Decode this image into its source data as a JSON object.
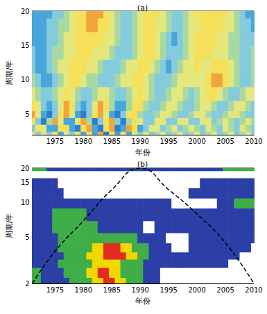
{
  "chart_data": [
    {
      "type": "heatmap",
      "title": "(a)",
      "xlabel": "年份",
      "ylabel": "周期/年",
      "xlim": [
        1971,
        2010
      ],
      "ylim": [
        2,
        20
      ],
      "xticks": [
        1975,
        1980,
        1985,
        1990,
        1995,
        2000,
        2005,
        2010
      ],
      "yticks": [
        5,
        10,
        15,
        20
      ],
      "zlim": [
        -3,
        3
      ],
      "x": [
        1971,
        1972,
        1973,
        1974,
        1975,
        1976,
        1977,
        1978,
        1979,
        1980,
        1981,
        1982,
        1983,
        1984,
        1985,
        1986,
        1987,
        1988,
        1989,
        1990,
        1991,
        1992,
        1993,
        1994,
        1995,
        1996,
        1997,
        1998,
        1999,
        2000,
        2001,
        2002,
        2003,
        2004,
        2005,
        2006,
        2007,
        2008,
        2009,
        2010
      ],
      "y": [
        2,
        3,
        4,
        5,
        6,
        8,
        10,
        12,
        14,
        16,
        18,
        20
      ],
      "cells": [
        [
          1,
          -1,
          1,
          -1,
          2,
          -2,
          1,
          -1,
          2,
          -2,
          2,
          -2,
          3,
          -3,
          2,
          -2,
          2,
          -2,
          1,
          -1,
          1,
          -1,
          0,
          1,
          -1,
          0,
          1,
          -1,
          0,
          1,
          -1,
          0,
          1,
          -1,
          0,
          1,
          -1,
          0,
          1,
          -1
        ],
        [
          -1,
          2,
          1,
          -2,
          -2,
          2,
          2,
          -2,
          -3,
          2,
          3,
          -2,
          -3,
          2,
          3,
          -3,
          -2,
          3,
          2,
          -2,
          -1,
          1,
          1,
          -1,
          0,
          1,
          -1,
          0,
          1,
          0,
          -1,
          1,
          0,
          -1,
          1,
          0,
          -1,
          1,
          0,
          -1
        ],
        [
          2,
          -1,
          -3,
          0,
          3,
          1,
          -2,
          -2,
          1,
          3,
          0,
          -3,
          -1,
          2,
          3,
          -1,
          -3,
          0,
          2,
          1,
          -1,
          -1,
          1,
          1,
          -1,
          -1,
          1,
          1,
          -1,
          -1,
          1,
          1,
          -1,
          0,
          1,
          0,
          -1,
          0,
          1,
          0
        ],
        [
          3,
          1,
          -2,
          -3,
          -1,
          2,
          3,
          1,
          -2,
          -3,
          -1,
          2,
          3,
          1,
          -2,
          -3,
          -1,
          2,
          2,
          0,
          -1,
          -1,
          0,
          1,
          1,
          0,
          -1,
          -1,
          0,
          1,
          1,
          0,
          -1,
          -1,
          0,
          1,
          1,
          0,
          -1,
          -1
        ],
        [
          2,
          1,
          -1,
          -2,
          -1,
          1,
          3,
          2,
          -1,
          -2,
          -1,
          1,
          3,
          2,
          0,
          -2,
          -2,
          0,
          2,
          2,
          0,
          -1,
          -1,
          0,
          1,
          1,
          0,
          -1,
          -1,
          0,
          1,
          1,
          0,
          -1,
          -1,
          0,
          1,
          1,
          0,
          -1
        ],
        [
          1,
          0,
          -1,
          -1,
          0,
          1,
          2,
          1,
          0,
          -1,
          -1,
          0,
          1,
          1,
          0,
          -1,
          -1,
          0,
          1,
          2,
          1,
          0,
          -1,
          -1,
          0,
          1,
          1,
          0,
          -1,
          0,
          1,
          2,
          2,
          1,
          0,
          -1,
          -1,
          0,
          1,
          1
        ],
        [
          0,
          -1,
          -2,
          -2,
          -1,
          0,
          1,
          2,
          2,
          1,
          0,
          0,
          -1,
          -1,
          -1,
          0,
          1,
          1,
          2,
          2,
          1,
          0,
          -1,
          -1,
          -1,
          0,
          1,
          1,
          1,
          1,
          1,
          2,
          3,
          3,
          2,
          1,
          0,
          -1,
          -1,
          0
        ],
        [
          -1,
          -2,
          -2,
          -1,
          0,
          1,
          1,
          2,
          2,
          2,
          1,
          1,
          0,
          -1,
          -1,
          -1,
          0,
          1,
          1,
          2,
          2,
          1,
          0,
          -1,
          -2,
          -1,
          0,
          1,
          1,
          2,
          1,
          1,
          2,
          2,
          2,
          1,
          0,
          -1,
          -1,
          0
        ],
        [
          -1,
          -2,
          -2,
          -1,
          0,
          0,
          1,
          1,
          2,
          2,
          2,
          1,
          1,
          1,
          0,
          -1,
          -1,
          -1,
          0,
          1,
          2,
          2,
          1,
          0,
          -1,
          -1,
          -1,
          0,
          1,
          2,
          2,
          2,
          1,
          1,
          1,
          0,
          0,
          -1,
          -1,
          0
        ],
        [
          -2,
          -2,
          -2,
          -1,
          -1,
          0,
          1,
          1,
          2,
          2,
          2,
          2,
          2,
          1,
          1,
          0,
          -1,
          -1,
          0,
          1,
          2,
          2,
          1,
          0,
          -1,
          -2,
          -1,
          0,
          1,
          2,
          2,
          2,
          2,
          1,
          1,
          0,
          0,
          -1,
          -1,
          -1
        ],
        [
          -2,
          -2,
          -2,
          -1,
          -1,
          0,
          0,
          1,
          2,
          2,
          3,
          3,
          2,
          2,
          1,
          0,
          -1,
          -1,
          0,
          1,
          2,
          2,
          1,
          1,
          0,
          -1,
          -1,
          0,
          1,
          1,
          2,
          2,
          2,
          2,
          1,
          1,
          0,
          -1,
          -1,
          -2
        ],
        [
          -2,
          -2,
          -2,
          -2,
          -1,
          -1,
          0,
          1,
          2,
          2,
          3,
          3,
          3,
          2,
          1,
          0,
          -1,
          -1,
          0,
          1,
          2,
          2,
          2,
          1,
          0,
          -1,
          -1,
          0,
          1,
          2,
          2,
          2,
          2,
          2,
          2,
          1,
          0,
          -1,
          -2,
          -2
        ]
      ]
    },
    {
      "type": "heatmap",
      "title": "(b)",
      "xlabel": "年份",
      "ylabel": "周期/年",
      "log": "y",
      "xlim": [
        1971,
        2010
      ],
      "ylim": [
        2,
        20
      ],
      "xticks": [
        1975,
        1980,
        1985,
        1990,
        1995,
        2000,
        2005,
        2010
      ],
      "yticks": [
        2,
        5,
        10,
        15,
        20
      ],
      "zlim": [
        0,
        4
      ],
      "x": [
        1971,
        1972,
        1973,
        1974,
        1975,
        1976,
        1977,
        1978,
        1979,
        1980,
        1981,
        1982,
        1983,
        1984,
        1985,
        1986,
        1987,
        1988,
        1989,
        1990,
        1991,
        1992,
        1993,
        1994,
        1995,
        1996,
        1997,
        1998,
        1999,
        2000,
        2001,
        2002,
        2003,
        2004,
        2005,
        2006,
        2007,
        2008,
        2009,
        2010
      ],
      "y": [
        2,
        2.5,
        3,
        3.5,
        4,
        5,
        6,
        8,
        10,
        12,
        15,
        18,
        20
      ],
      "cells": [
        [
          2,
          2,
          1,
          1,
          1,
          1,
          1,
          2,
          2,
          2,
          2,
          3,
          3,
          4,
          4,
          3,
          3,
          2,
          2,
          2,
          1,
          1,
          1,
          0,
          0,
          0,
          0,
          0,
          0,
          0,
          0,
          0,
          0,
          0,
          0,
          0,
          0,
          0,
          0,
          0
        ],
        [
          2,
          2,
          1,
          1,
          1,
          1,
          2,
          2,
          2,
          2,
          3,
          3,
          4,
          4,
          3,
          3,
          2,
          2,
          2,
          2,
          1,
          1,
          1,
          0,
          0,
          0,
          0,
          0,
          0,
          0,
          0,
          0,
          0,
          0,
          0,
          0,
          0,
          0,
          0,
          0
        ],
        [
          1,
          1,
          1,
          1,
          1,
          2,
          2,
          2,
          2,
          2,
          2,
          3,
          3,
          3,
          3,
          3,
          2,
          2,
          2,
          2,
          1,
          1,
          1,
          1,
          1,
          1,
          1,
          1,
          1,
          1,
          1,
          1,
          1,
          1,
          1,
          0,
          0,
          0,
          0,
          0
        ],
        [
          1,
          1,
          1,
          1,
          1,
          1,
          2,
          2,
          2,
          2,
          3,
          3,
          3,
          4,
          4,
          4,
          4,
          3,
          3,
          2,
          2,
          1,
          1,
          1,
          1,
          1,
          1,
          1,
          1,
          1,
          1,
          1,
          1,
          1,
          1,
          1,
          1,
          0,
          0,
          0
        ],
        [
          1,
          1,
          1,
          1,
          1,
          2,
          2,
          2,
          2,
          2,
          2,
          3,
          3,
          4,
          4,
          4,
          3,
          3,
          2,
          2,
          2,
          1,
          1,
          1,
          1,
          0,
          0,
          0,
          1,
          1,
          1,
          1,
          1,
          1,
          1,
          1,
          1,
          1,
          1,
          0
        ],
        [
          1,
          1,
          1,
          1,
          1,
          2,
          2,
          2,
          2,
          2,
          2,
          2,
          2,
          2,
          2,
          2,
          2,
          2,
          2,
          1,
          1,
          1,
          1,
          1,
          0,
          0,
          0,
          0,
          1,
          1,
          1,
          1,
          1,
          1,
          1,
          1,
          1,
          1,
          1,
          1
        ],
        [
          1,
          1,
          1,
          1,
          2,
          2,
          2,
          2,
          2,
          2,
          2,
          2,
          1,
          1,
          1,
          1,
          1,
          1,
          1,
          1,
          0,
          0,
          1,
          1,
          1,
          1,
          1,
          1,
          1,
          1,
          1,
          1,
          1,
          1,
          1,
          1,
          1,
          1,
          1,
          1
        ],
        [
          1,
          1,
          1,
          1,
          2,
          2,
          2,
          2,
          2,
          2,
          1,
          1,
          1,
          1,
          1,
          1,
          1,
          1,
          1,
          1,
          1,
          1,
          1,
          1,
          1,
          1,
          1,
          1,
          1,
          1,
          1,
          1,
          1,
          1,
          1,
          1,
          1,
          1,
          1,
          1
        ],
        [
          1,
          1,
          1,
          1,
          1,
          1,
          1,
          1,
          1,
          1,
          1,
          1,
          1,
          1,
          1,
          1,
          1,
          1,
          1,
          1,
          1,
          1,
          1,
          1,
          1,
          0,
          0,
          0,
          0,
          0,
          0,
          0,
          0,
          1,
          1,
          1,
          2,
          2,
          2,
          2
        ],
        [
          1,
          1,
          1,
          1,
          1,
          1,
          0,
          0,
          0,
          0,
          0,
          0,
          0,
          0,
          0,
          0,
          0,
          0,
          0,
          0,
          0,
          0,
          0,
          0,
          0,
          0,
          0,
          0,
          1,
          1,
          1,
          1,
          1,
          1,
          1,
          1,
          1,
          1,
          1,
          1
        ],
        [
          1,
          1,
          1,
          1,
          1,
          0,
          0,
          0,
          0,
          0,
          0,
          0,
          0,
          0,
          0,
          0,
          0,
          0,
          0,
          0,
          0,
          0,
          0,
          0,
          0,
          0,
          0,
          0,
          0,
          0,
          1,
          1,
          1,
          1,
          1,
          1,
          1,
          1,
          1,
          1
        ],
        [
          0,
          0,
          0,
          0,
          0,
          0,
          0,
          0,
          0,
          0,
          0,
          0,
          0,
          0,
          0,
          0,
          0,
          0,
          0,
          0,
          0,
          0,
          0,
          0,
          0,
          0,
          0,
          0,
          0,
          0,
          0,
          0,
          0,
          0,
          0,
          0,
          0,
          0,
          0,
          0
        ],
        [
          2,
          2,
          2,
          1,
          1,
          1,
          1,
          1,
          1,
          1,
          1,
          1,
          1,
          1,
          1,
          1,
          1,
          1,
          1,
          1,
          1,
          1,
          1,
          1,
          1,
          1,
          1,
          1,
          1,
          1,
          1,
          1,
          1,
          1,
          2,
          2,
          2,
          2,
          2,
          2
        ]
      ],
      "series": [
        {
          "type": "line",
          "line_style": "dashed",
          "color": "#000000",
          "x": [
            1971,
            1975,
            1980,
            1985,
            1990,
            1995,
            2000,
            2005,
            2010
          ],
          "values": [
            2,
            3.8,
            7,
            13,
            20,
            13,
            8,
            4.5,
            2
          ]
        }
      ]
    }
  ]
}
